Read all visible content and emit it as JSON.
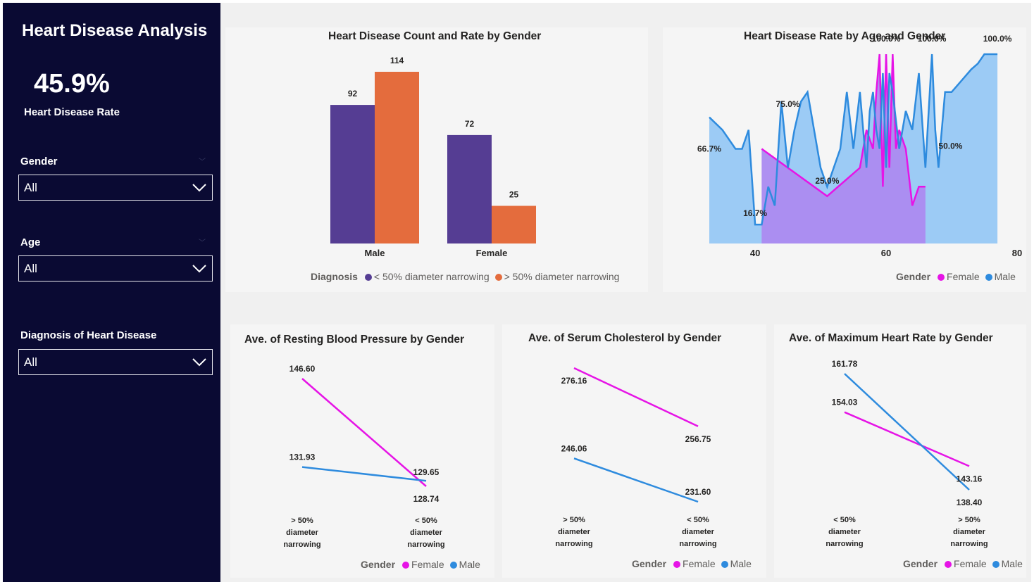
{
  "sidebar": {
    "title": "Heart Disease Analysis",
    "kpi_value": "45.9%",
    "kpi_label": "Heart Disease Rate",
    "slicers": [
      {
        "label": "Gender",
        "value": "All"
      },
      {
        "label": "Age",
        "value": "All"
      },
      {
        "label": "Diagnosis of Heart Disease",
        "value": "All"
      }
    ]
  },
  "colors": {
    "sidebar_bg": "#0a0a33",
    "purple": "#553d93",
    "orange": "#e46c3d",
    "female": "#e614e6",
    "male": "#2e8bde",
    "male_fill": "#9ccbf5",
    "female_fill": "#e58ced",
    "overlap_fill": "#9b8cf2"
  },
  "chart_data": [
    {
      "type": "bar",
      "title": "Heart Disease Count and Rate by Gender",
      "categories": [
        "Male",
        "Female"
      ],
      "legend_title": "Diagnosis",
      "series": [
        {
          "name": "< 50% diameter narrowing",
          "values": [
            92,
            72
          ],
          "labels": [
            "92",
            "72"
          ]
        },
        {
          "name": "> 50% diameter narrowing",
          "values": [
            114,
            25
          ],
          "labels": [
            "114",
            "25"
          ]
        }
      ]
    },
    {
      "type": "area",
      "title": "Heart Disease Rate by Age and Gender",
      "x_ticks": [
        "40",
        "60",
        "80"
      ],
      "xlim": [
        33,
        80
      ],
      "ylim": [
        0,
        1
      ],
      "legend_title": "Gender",
      "legend": [
        "Female",
        "Male"
      ],
      "series": [
        {
          "name": "Male",
          "x": [
            33,
            35,
            37,
            38,
            39,
            40,
            41,
            42,
            43,
            44,
            45,
            46,
            47,
            48,
            49,
            50,
            51,
            52,
            53,
            54,
            55,
            56,
            57,
            57.5,
            58,
            58.5,
            59,
            59.5,
            60,
            60.5,
            61,
            62,
            63,
            64,
            65,
            66,
            67,
            67.5,
            68,
            69,
            70,
            71,
            72,
            73,
            74,
            75,
            76,
            77
          ],
          "y": [
            0.667,
            0.6,
            0.5,
            0.5,
            0.6,
            0.1,
            0.1,
            0.3,
            0.2,
            0.75,
            0.4,
            0.6,
            0.75,
            0.8,
            0.6,
            0.4,
            0.3,
            0.4,
            0.5,
            0.8,
            0.5,
            0.8,
            0.4,
            0.7,
            0.8,
            0.6,
            0.5,
            0.9,
            0.4,
            0.9,
            0.8,
            0.5,
            0.7,
            0.6,
            0.9,
            0.4,
            1.0,
            0.6,
            0.4,
            0.8,
            0.8,
            0.84,
            0.88,
            0.92,
            0.95,
            1.0,
            1.0,
            1.0
          ]
        },
        {
          "name": "Female",
          "x": [
            41,
            51,
            56,
            57,
            58,
            58.5,
            59,
            59.5,
            60,
            60.5,
            61,
            61.5,
            62,
            63,
            64,
            65,
            66
          ],
          "y": [
            0.5,
            0.25,
            0.4,
            0.6,
            0.5,
            0.8,
            1.0,
            0.3,
            1.0,
            0.4,
            1.0,
            0.5,
            0.6,
            0.5,
            0.2,
            0.3,
            0.3
          ]
        }
      ],
      "data_labels": [
        "66.7%",
        "75.0%",
        "16.7%",
        "25.0%",
        "100.0%",
        "100.0%",
        "100.0%",
        "50.0%"
      ]
    },
    {
      "type": "line",
      "title": "Ave. of Resting Blood Pressure by Gender",
      "categories": [
        "> 50% diameter narrowing",
        "< 50% diameter narrowing"
      ],
      "legend_title": "Gender",
      "legend": [
        "Female",
        "Male"
      ],
      "series": [
        {
          "name": "Female",
          "values": [
            146.6,
            128.74
          ]
        },
        {
          "name": "Male",
          "values": [
            131.93,
            129.65
          ]
        }
      ],
      "labels": {
        "female": [
          "146.60",
          "128.74"
        ],
        "male": [
          "131.93",
          "129.65"
        ]
      }
    },
    {
      "type": "line",
      "title": "Ave. of Serum Cholesterol by Gender",
      "categories": [
        "> 50% diameter narrowing",
        "< 50% diameter narrowing"
      ],
      "legend_title": "Gender",
      "legend": [
        "Female",
        "Male"
      ],
      "series": [
        {
          "name": "Female",
          "values": [
            276.16,
            256.75
          ]
        },
        {
          "name": "Male",
          "values": [
            246.06,
            231.6
          ]
        }
      ],
      "labels": {
        "female": [
          "276.16",
          "256.75"
        ],
        "male": [
          "246.06",
          "231.60"
        ]
      }
    },
    {
      "type": "line",
      "title": "Ave. of Maximum Heart Rate by  Gender",
      "categories": [
        "< 50% diameter narrowing",
        "> 50% diameter narrowing"
      ],
      "legend_title": "Gender",
      "legend": [
        "Female",
        "Male"
      ],
      "series": [
        {
          "name": "Female",
          "values": [
            154.03,
            143.16
          ]
        },
        {
          "name": "Male",
          "values": [
            161.78,
            138.4
          ]
        }
      ],
      "labels": {
        "female": [
          "154.03",
          "143.16"
        ],
        "male": [
          "161.78",
          "138.40"
        ]
      }
    }
  ]
}
